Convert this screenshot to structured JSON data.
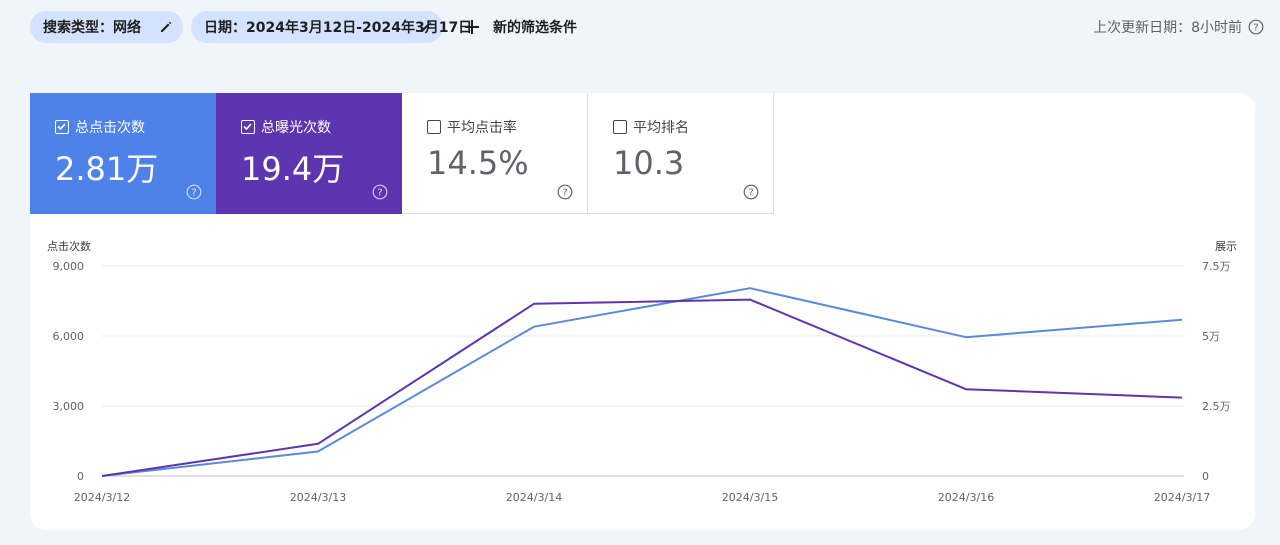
{
  "filters": {
    "search_type_chip": "搜索类型：网络",
    "date_chip": "日期：2024年3月12日-2024年3月17日",
    "add_filter_label": "新的筛选条件"
  },
  "last_updated": "上次更新日期：8小时前",
  "metrics": [
    {
      "label": "总点击次数",
      "value": "2.81万",
      "checked": true,
      "color": "#4f82e8"
    },
    {
      "label": "总曝光次数",
      "value": "19.4万",
      "checked": true,
      "color": "#5e35b1"
    },
    {
      "label": "平均点击率",
      "value": "14.5%",
      "checked": false
    },
    {
      "label": "平均排名",
      "value": "10.3",
      "checked": false
    }
  ],
  "chart_data": {
    "type": "line",
    "x": [
      "2024/3/12",
      "2024/3/13",
      "2024/3/14",
      "2024/3/15",
      "2024/3/16",
      "2024/3/17"
    ],
    "left_axis": {
      "title": "点击次数",
      "ylim": [
        0,
        9000
      ],
      "ticks": [
        "0",
        "3,000",
        "6,000",
        "9,000"
      ]
    },
    "right_axis": {
      "title": "展示",
      "ylim": [
        0,
        75000
      ],
      "ticks": [
        "0",
        "2.5万",
        "5万",
        "7.5万"
      ]
    },
    "grid": true,
    "series": [
      {
        "name": "总点击次数",
        "axis": "left",
        "color": "#5b8ad6",
        "values": [
          0,
          1050,
          6400,
          8050,
          5950,
          6700
        ]
      },
      {
        "name": "总曝光次数",
        "axis": "right",
        "color": "#5e35b1",
        "values": [
          0,
          11500,
          61500,
          63000,
          31000,
          28000
        ]
      }
    ]
  }
}
